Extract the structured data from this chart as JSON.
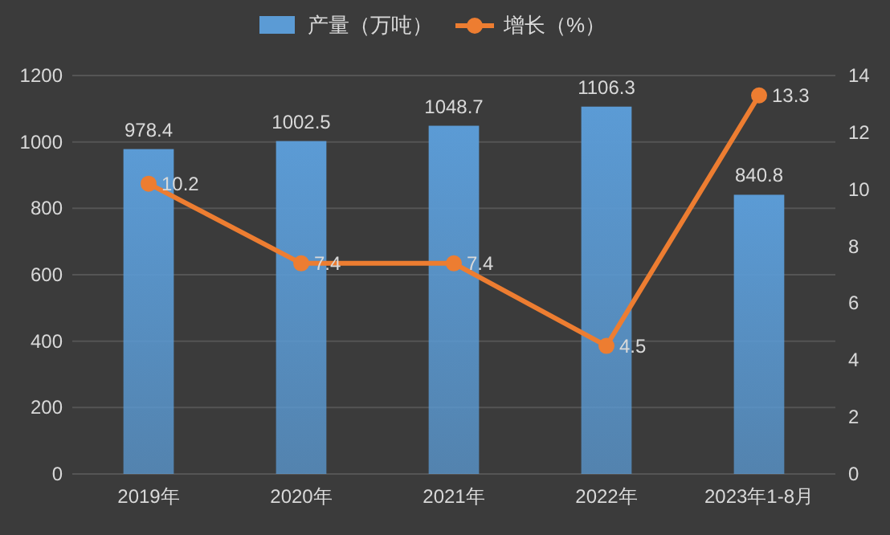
{
  "chart_data": {
    "type": "bar",
    "categories": [
      "2019年",
      "2020年",
      "2021年",
      "2022年",
      "2023年1-8月"
    ],
    "series": [
      {
        "name": "产量（万吨）",
        "color": "#5b9bd5",
        "values": [
          978.4,
          1002.5,
          1048.7,
          1106.3,
          840.8
        ]
      },
      {
        "name": "增长（%）",
        "type": "line",
        "axis": "y2",
        "color": "#ed7d31",
        "marker": "circle",
        "values": [
          10.2,
          7.4,
          7.4,
          4.5,
          13.3
        ]
      }
    ],
    "ylim": [
      0,
      1200
    ],
    "yticks": [
      0,
      200,
      400,
      600,
      800,
      1000,
      1200
    ],
    "y2lim": [
      0,
      14
    ],
    "y2ticks": [
      0,
      2,
      4,
      6,
      8,
      10,
      12,
      14
    ],
    "data_labels": true,
    "legend": "top",
    "grid": "y"
  }
}
